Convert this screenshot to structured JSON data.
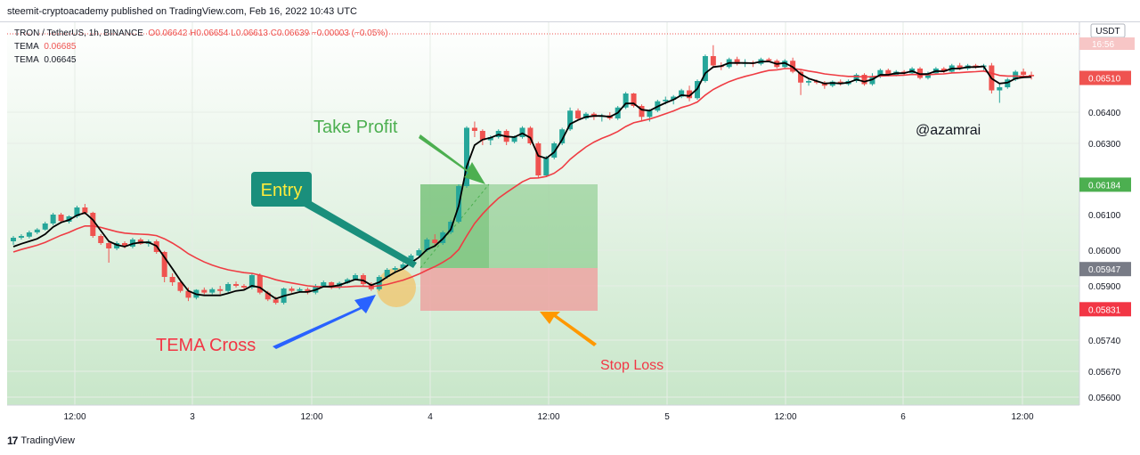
{
  "caption": "steemit-cryptoacademy published on TradingView.com, Feb 16, 2022 10:43 UTC",
  "legend": {
    "symbol": "TRON / TetherUS, 1h, BINANCE",
    "ohlc": "O0.06642 H0.06654 L0.06613 C0.06639 −0.00003 (−0.05%)",
    "tema1_label": "TEMA",
    "tema1_value": "0.06685",
    "tema2_label": "TEMA",
    "tema2_value": "0.06645"
  },
  "footer": {
    "logo": "17",
    "brand": "TradingView"
  },
  "chart_data": {
    "type": "candlestick",
    "currency": "USDT",
    "time_badge": "16:56",
    "y_ticks": [
      "0.06400",
      "0.06300",
      "0.06100",
      "0.06000",
      "0.05900",
      "0.05740",
      "0.05670",
      "0.05600"
    ],
    "x_ticks": [
      "12:00",
      "3",
      "12:00",
      "4",
      "12:00",
      "5",
      "12:00",
      "6",
      "12:00"
    ],
    "price_labels": [
      {
        "text": "0.06510",
        "value": 0.0651,
        "color": "#ef5350"
      },
      {
        "text": "0.06184",
        "value": 0.06184,
        "color": "#4caf50"
      },
      {
        "text": "0.05947",
        "value": 0.05947,
        "color": "#787b86"
      },
      {
        "text": "0.05831",
        "value": 0.05831,
        "color": "#f23645"
      }
    ],
    "candles": [
      {
        "o": 0.06025,
        "h": 0.0604,
        "l": 0.06015,
        "c": 0.06035
      },
      {
        "o": 0.06035,
        "h": 0.06045,
        "l": 0.0603,
        "c": 0.0604
      },
      {
        "o": 0.06038,
        "h": 0.06055,
        "l": 0.06033,
        "c": 0.0605
      },
      {
        "o": 0.0605,
        "h": 0.06062,
        "l": 0.06045,
        "c": 0.06058
      },
      {
        "o": 0.06058,
        "h": 0.0608,
        "l": 0.06055,
        "c": 0.06075
      },
      {
        "o": 0.06075,
        "h": 0.06105,
        "l": 0.0607,
        "c": 0.061
      },
      {
        "o": 0.061,
        "h": 0.06105,
        "l": 0.06075,
        "c": 0.06082
      },
      {
        "o": 0.0608,
        "h": 0.06098,
        "l": 0.06075,
        "c": 0.06095
      },
      {
        "o": 0.06095,
        "h": 0.06125,
        "l": 0.0609,
        "c": 0.0612
      },
      {
        "o": 0.0612,
        "h": 0.0613,
        "l": 0.061,
        "c": 0.06105
      },
      {
        "o": 0.06105,
        "h": 0.06108,
        "l": 0.06035,
        "c": 0.0604
      },
      {
        "o": 0.0604,
        "h": 0.06045,
        "l": 0.06015,
        "c": 0.0602
      },
      {
        "o": 0.0602,
        "h": 0.06025,
        "l": 0.05965,
        "c": 0.06005
      },
      {
        "o": 0.06005,
        "h": 0.06025,
        "l": 0.06,
        "c": 0.0602
      },
      {
        "o": 0.0602,
        "h": 0.06025,
        "l": 0.06005,
        "c": 0.0601
      },
      {
        "o": 0.0601,
        "h": 0.06035,
        "l": 0.06005,
        "c": 0.0603
      },
      {
        "o": 0.0603,
        "h": 0.06035,
        "l": 0.06015,
        "c": 0.06018
      },
      {
        "o": 0.06018,
        "h": 0.0603,
        "l": 0.0601,
        "c": 0.06025
      },
      {
        "o": 0.06025,
        "h": 0.0603,
        "l": 0.0599,
        "c": 0.05995
      },
      {
        "o": 0.05995,
        "h": 0.05998,
        "l": 0.0591,
        "c": 0.05925
      },
      {
        "o": 0.05925,
        "h": 0.05935,
        "l": 0.059,
        "c": 0.0591
      },
      {
        "o": 0.0591,
        "h": 0.05912,
        "l": 0.0588,
        "c": 0.05885
      },
      {
        "o": 0.05885,
        "h": 0.05895,
        "l": 0.05855,
        "c": 0.05865
      },
      {
        "o": 0.05865,
        "h": 0.0589,
        "l": 0.0586,
        "c": 0.05888
      },
      {
        "o": 0.05888,
        "h": 0.05895,
        "l": 0.05875,
        "c": 0.0588
      },
      {
        "o": 0.0588,
        "h": 0.05895,
        "l": 0.05875,
        "c": 0.0589
      },
      {
        "o": 0.0589,
        "h": 0.059,
        "l": 0.05875,
        "c": 0.05885
      },
      {
        "o": 0.05885,
        "h": 0.0591,
        "l": 0.0588,
        "c": 0.05905
      },
      {
        "o": 0.05905,
        "h": 0.05912,
        "l": 0.05895,
        "c": 0.059
      },
      {
        "o": 0.059,
        "h": 0.05905,
        "l": 0.0589,
        "c": 0.05895
      },
      {
        "o": 0.05895,
        "h": 0.05935,
        "l": 0.0589,
        "c": 0.0593
      },
      {
        "o": 0.0593,
        "h": 0.05935,
        "l": 0.05875,
        "c": 0.0588
      },
      {
        "o": 0.0588,
        "h": 0.05885,
        "l": 0.05855,
        "c": 0.0586
      },
      {
        "o": 0.0586,
        "h": 0.05868,
        "l": 0.05845,
        "c": 0.0585
      },
      {
        "o": 0.0585,
        "h": 0.05895,
        "l": 0.05845,
        "c": 0.05892
      },
      {
        "o": 0.05892,
        "h": 0.05898,
        "l": 0.0588,
        "c": 0.05885
      },
      {
        "o": 0.05885,
        "h": 0.05895,
        "l": 0.0588,
        "c": 0.0589
      },
      {
        "o": 0.0589,
        "h": 0.05895,
        "l": 0.05875,
        "c": 0.0588
      },
      {
        "o": 0.0588,
        "h": 0.05905,
        "l": 0.05875,
        "c": 0.059
      },
      {
        "o": 0.059,
        "h": 0.05915,
        "l": 0.05895,
        "c": 0.0591
      },
      {
        "o": 0.0591,
        "h": 0.05912,
        "l": 0.0589,
        "c": 0.05895
      },
      {
        "o": 0.05895,
        "h": 0.05912,
        "l": 0.0589,
        "c": 0.05908
      },
      {
        "o": 0.05908,
        "h": 0.05922,
        "l": 0.05905,
        "c": 0.05918
      },
      {
        "o": 0.05918,
        "h": 0.05935,
        "l": 0.05915,
        "c": 0.0593
      },
      {
        "o": 0.0593,
        "h": 0.05935,
        "l": 0.059,
        "c": 0.05905
      },
      {
        "o": 0.05905,
        "h": 0.0591,
        "l": 0.05885,
        "c": 0.0589
      },
      {
        "o": 0.0589,
        "h": 0.0593,
        "l": 0.05885,
        "c": 0.05925
      },
      {
        "o": 0.05925,
        "h": 0.0595,
        "l": 0.0592,
        "c": 0.05945
      },
      {
        "o": 0.05945,
        "h": 0.05955,
        "l": 0.0594,
        "c": 0.0595
      },
      {
        "o": 0.0595,
        "h": 0.05965,
        "l": 0.05945,
        "c": 0.0596
      },
      {
        "o": 0.0596,
        "h": 0.0599,
        "l": 0.05955,
        "c": 0.05985
      },
      {
        "o": 0.05985,
        "h": 0.06005,
        "l": 0.0598,
        "c": 0.06
      },
      {
        "o": 0.06,
        "h": 0.06035,
        "l": 0.05995,
        "c": 0.0603
      },
      {
        "o": 0.0603,
        "h": 0.06045,
        "l": 0.06015,
        "c": 0.0602
      },
      {
        "o": 0.0602,
        "h": 0.06055,
        "l": 0.06015,
        "c": 0.0605
      },
      {
        "o": 0.0605,
        "h": 0.06085,
        "l": 0.06045,
        "c": 0.0608
      },
      {
        "o": 0.0608,
        "h": 0.06185,
        "l": 0.06075,
        "c": 0.0618
      },
      {
        "o": 0.0618,
        "h": 0.06355,
        "l": 0.06175,
        "c": 0.0635
      },
      {
        "o": 0.0635,
        "h": 0.0637,
        "l": 0.0632,
        "c": 0.0634
      },
      {
        "o": 0.0634,
        "h": 0.06345,
        "l": 0.06295,
        "c": 0.0631
      },
      {
        "o": 0.0631,
        "h": 0.06325,
        "l": 0.06295,
        "c": 0.0632
      },
      {
        "o": 0.0632,
        "h": 0.06345,
        "l": 0.06315,
        "c": 0.0634
      },
      {
        "o": 0.0634,
        "h": 0.06345,
        "l": 0.06295,
        "c": 0.06305
      },
      {
        "o": 0.06305,
        "h": 0.06325,
        "l": 0.063,
        "c": 0.0632
      },
      {
        "o": 0.0632,
        "h": 0.06355,
        "l": 0.06315,
        "c": 0.0635
      },
      {
        "o": 0.0635,
        "h": 0.06355,
        "l": 0.06295,
        "c": 0.063
      },
      {
        "o": 0.063,
        "h": 0.06305,
        "l": 0.06205,
        "c": 0.0621
      },
      {
        "o": 0.0621,
        "h": 0.06265,
        "l": 0.06205,
        "c": 0.0626
      },
      {
        "o": 0.0626,
        "h": 0.06305,
        "l": 0.06255,
        "c": 0.063
      },
      {
        "o": 0.063,
        "h": 0.0635,
        "l": 0.06295,
        "c": 0.06345
      },
      {
        "o": 0.06345,
        "h": 0.06415,
        "l": 0.0634,
        "c": 0.06405
      },
      {
        "o": 0.06405,
        "h": 0.06412,
        "l": 0.06375,
        "c": 0.0638
      },
      {
        "o": 0.0638,
        "h": 0.064,
        "l": 0.06375,
        "c": 0.06395
      },
      {
        "o": 0.06395,
        "h": 0.064,
        "l": 0.06375,
        "c": 0.06385
      },
      {
        "o": 0.06385,
        "h": 0.06395,
        "l": 0.0637,
        "c": 0.0639
      },
      {
        "o": 0.0639,
        "h": 0.064,
        "l": 0.06375,
        "c": 0.0638
      },
      {
        "o": 0.0638,
        "h": 0.0642,
        "l": 0.06375,
        "c": 0.06415
      },
      {
        "o": 0.06415,
        "h": 0.06465,
        "l": 0.0641,
        "c": 0.0646
      },
      {
        "o": 0.0646,
        "h": 0.06462,
        "l": 0.06415,
        "c": 0.0642
      },
      {
        "o": 0.0642,
        "h": 0.06425,
        "l": 0.0637,
        "c": 0.06385
      },
      {
        "o": 0.06385,
        "h": 0.0641,
        "l": 0.0637,
        "c": 0.06405
      },
      {
        "o": 0.06405,
        "h": 0.0644,
        "l": 0.064,
        "c": 0.06435
      },
      {
        "o": 0.06435,
        "h": 0.0645,
        "l": 0.06425,
        "c": 0.0644
      },
      {
        "o": 0.0644,
        "h": 0.06455,
        "l": 0.06425,
        "c": 0.0645
      },
      {
        "o": 0.0645,
        "h": 0.06475,
        "l": 0.06445,
        "c": 0.0647
      },
      {
        "o": 0.0647,
        "h": 0.06485,
        "l": 0.06435,
        "c": 0.06445
      },
      {
        "o": 0.06445,
        "h": 0.06505,
        "l": 0.0644,
        "c": 0.065
      },
      {
        "o": 0.065,
        "h": 0.06585,
        "l": 0.06495,
        "c": 0.0658
      },
      {
        "o": 0.0658,
        "h": 0.06615,
        "l": 0.06545,
        "c": 0.0655
      },
      {
        "o": 0.0655,
        "h": 0.0656,
        "l": 0.06535,
        "c": 0.06545
      },
      {
        "o": 0.06545,
        "h": 0.06575,
        "l": 0.0654,
        "c": 0.0657
      },
      {
        "o": 0.0657,
        "h": 0.06578,
        "l": 0.0655,
        "c": 0.06555
      },
      {
        "o": 0.06555,
        "h": 0.0657,
        "l": 0.06545,
        "c": 0.0656
      },
      {
        "o": 0.0656,
        "h": 0.06565,
        "l": 0.06545,
        "c": 0.06555
      },
      {
        "o": 0.06555,
        "h": 0.06575,
        "l": 0.0655,
        "c": 0.0657
      },
      {
        "o": 0.0657,
        "h": 0.06575,
        "l": 0.0656,
        "c": 0.06565
      },
      {
        "o": 0.06565,
        "h": 0.0657,
        "l": 0.0654,
        "c": 0.06545
      },
      {
        "o": 0.06545,
        "h": 0.0657,
        "l": 0.0654,
        "c": 0.06565
      },
      {
        "o": 0.06565,
        "h": 0.06575,
        "l": 0.06525,
        "c": 0.0653
      },
      {
        "o": 0.0653,
        "h": 0.06535,
        "l": 0.06455,
        "c": 0.06495
      },
      {
        "o": 0.06495,
        "h": 0.0651,
        "l": 0.06485,
        "c": 0.065
      },
      {
        "o": 0.065,
        "h": 0.06505,
        "l": 0.0649,
        "c": 0.06495
      },
      {
        "o": 0.06495,
        "h": 0.065,
        "l": 0.06475,
        "c": 0.06485
      },
      {
        "o": 0.06485,
        "h": 0.06502,
        "l": 0.0648,
        "c": 0.06498
      },
      {
        "o": 0.06498,
        "h": 0.06505,
        "l": 0.06485,
        "c": 0.0649
      },
      {
        "o": 0.0649,
        "h": 0.06505,
        "l": 0.06485,
        "c": 0.065
      },
      {
        "o": 0.065,
        "h": 0.06525,
        "l": 0.06495,
        "c": 0.0652
      },
      {
        "o": 0.0652,
        "h": 0.06525,
        "l": 0.06485,
        "c": 0.0649
      },
      {
        "o": 0.0649,
        "h": 0.06525,
        "l": 0.06485,
        "c": 0.06515
      },
      {
        "o": 0.06515,
        "h": 0.0654,
        "l": 0.0651,
        "c": 0.06535
      },
      {
        "o": 0.06535,
        "h": 0.0654,
        "l": 0.06515,
        "c": 0.0652
      },
      {
        "o": 0.0652,
        "h": 0.06535,
        "l": 0.06515,
        "c": 0.0653
      },
      {
        "o": 0.0653,
        "h": 0.06535,
        "l": 0.0652,
        "c": 0.06525
      },
      {
        "o": 0.06525,
        "h": 0.06545,
        "l": 0.0652,
        "c": 0.0654
      },
      {
        "o": 0.0654,
        "h": 0.06545,
        "l": 0.06505,
        "c": 0.0651
      },
      {
        "o": 0.0651,
        "h": 0.0653,
        "l": 0.06505,
        "c": 0.06525
      },
      {
        "o": 0.06525,
        "h": 0.06545,
        "l": 0.0652,
        "c": 0.0654
      },
      {
        "o": 0.0654,
        "h": 0.06545,
        "l": 0.06525,
        "c": 0.0653
      },
      {
        "o": 0.0653,
        "h": 0.06555,
        "l": 0.06525,
        "c": 0.0655
      },
      {
        "o": 0.0655,
        "h": 0.06558,
        "l": 0.06535,
        "c": 0.0654
      },
      {
        "o": 0.0654,
        "h": 0.06555,
        "l": 0.06535,
        "c": 0.0655
      },
      {
        "o": 0.0655,
        "h": 0.06555,
        "l": 0.0654,
        "c": 0.06545
      },
      {
        "o": 0.06545,
        "h": 0.06555,
        "l": 0.06535,
        "c": 0.0655
      },
      {
        "o": 0.0655,
        "h": 0.06558,
        "l": 0.0646,
        "c": 0.0647
      },
      {
        "o": 0.0647,
        "h": 0.0649,
        "l": 0.0643,
        "c": 0.0648
      },
      {
        "o": 0.0648,
        "h": 0.0651,
        "l": 0.06475,
        "c": 0.06505
      },
      {
        "o": 0.06505,
        "h": 0.06535,
        "l": 0.065,
        "c": 0.0653
      },
      {
        "o": 0.0653,
        "h": 0.0654,
        "l": 0.06515,
        "c": 0.0652
      },
      {
        "o": 0.0652,
        "h": 0.0653,
        "l": 0.06505,
        "c": 0.06515
      }
    ],
    "tema_fast": [
      0.0601,
      0.06018,
      0.06025,
      0.06032,
      0.06045,
      0.06065,
      0.06078,
      0.06085,
      0.06098,
      0.06105,
      0.06085,
      0.06055,
      0.06025,
      0.06015,
      0.0601,
      0.06018,
      0.06022,
      0.06022,
      0.06012,
      0.0598,
      0.05948,
      0.05915,
      0.05885,
      0.05875,
      0.05872,
      0.05872,
      0.05872,
      0.05878,
      0.05885,
      0.05888,
      0.059,
      0.05895,
      0.05878,
      0.05862,
      0.0587,
      0.05876,
      0.05882,
      0.05882,
      0.05888,
      0.05898,
      0.05898,
      0.05902,
      0.0591,
      0.05918,
      0.05915,
      0.05902,
      0.0591,
      0.05925,
      0.05938,
      0.05948,
      0.05965,
      0.0598,
      0.06002,
      0.06012,
      0.06032,
      0.06058,
      0.06125,
      0.06235,
      0.06295,
      0.06312,
      0.06318,
      0.06328,
      0.06322,
      0.0632,
      0.06332,
      0.06318,
      0.06265,
      0.06258,
      0.06275,
      0.06312,
      0.06362,
      0.06375,
      0.06385,
      0.06388,
      0.06388,
      0.06385,
      0.06398,
      0.06428,
      0.06428,
      0.06408,
      0.06405,
      0.06418,
      0.0643,
      0.0644,
      0.06455,
      0.06452,
      0.06475,
      0.06525,
      0.06545,
      0.06548,
      0.06558,
      0.06558,
      0.06558,
      0.06557,
      0.06562,
      0.06563,
      0.06555,
      0.06558,
      0.06545,
      0.06522,
      0.06508,
      0.065,
      0.06492,
      0.06494,
      0.06492,
      0.06495,
      0.06505,
      0.06498,
      0.06505,
      0.0652,
      0.0652,
      0.06525,
      0.06525,
      0.06532,
      0.06522,
      0.06523,
      0.06532,
      0.06531,
      0.0654,
      0.0654,
      0.06545,
      0.06545,
      0.06547,
      0.06508,
      0.06492,
      0.06495,
      0.06508,
      0.06512,
      0.06513
    ],
    "tema_slow": [
      0.05995,
      0.06002,
      0.06008,
      0.06014,
      0.06022,
      0.06032,
      0.06042,
      0.0605,
      0.0606,
      0.06068,
      0.06068,
      0.06064,
      0.06058,
      0.06052,
      0.06048,
      0.06046,
      0.06045,
      0.06044,
      0.06041,
      0.06032,
      0.0602,
      0.06006,
      0.0599,
      0.05978,
      0.05967,
      0.05958,
      0.05951,
      0.05945,
      0.05941,
      0.05937,
      0.05935,
      0.0593,
      0.05924,
      0.05917,
      0.05912,
      0.05908,
      0.05904,
      0.059,
      0.05898,
      0.05897,
      0.05896,
      0.05896,
      0.05897,
      0.05899,
      0.05899,
      0.05898,
      0.059,
      0.05904,
      0.0591,
      0.05916,
      0.05924,
      0.05933,
      0.05944,
      0.05954,
      0.05966,
      0.0598,
      0.06002,
      0.0604,
      0.06075,
      0.06102,
      0.06125,
      0.06146,
      0.06162,
      0.06177,
      0.06192,
      0.06202,
      0.06203,
      0.06207,
      0.06216,
      0.06232,
      0.06255,
      0.06273,
      0.0629,
      0.06304,
      0.06316,
      0.06326,
      0.06338,
      0.06354,
      0.06366,
      0.06372,
      0.06378,
      0.06386,
      0.06395,
      0.06404,
      0.06415,
      0.06422,
      0.06433,
      0.06455,
      0.06473,
      0.06486,
      0.06498,
      0.06507,
      0.06515,
      0.06521,
      0.06528,
      0.06534,
      0.06536,
      0.0654,
      0.0654,
      0.06537,
      0.06532,
      0.06528,
      0.06523,
      0.0652,
      0.06517,
      0.06515,
      0.06515,
      0.06513,
      0.06514,
      0.06516,
      0.06517,
      0.06518,
      0.06519,
      0.06521,
      0.0652,
      0.0652,
      0.06522,
      0.06523,
      0.06526,
      0.06527,
      0.06529,
      0.0653,
      0.06532,
      0.06525,
      0.06518,
      0.06516,
      0.06516,
      0.06515,
      0.06515
    ],
    "annotations": {
      "take_profit": "Take Profit",
      "entry": "Entry",
      "tema_cross": "TEMA Cross",
      "stop_loss": "Stop Loss",
      "author": "@azamrai"
    },
    "colors": {
      "up": "#26a69a",
      "down": "#ef5350",
      "tema_fast": "#000000",
      "tema_slow": "#ef3c43",
      "profit": "#4caf50",
      "loss": "#ef9a9a"
    }
  }
}
